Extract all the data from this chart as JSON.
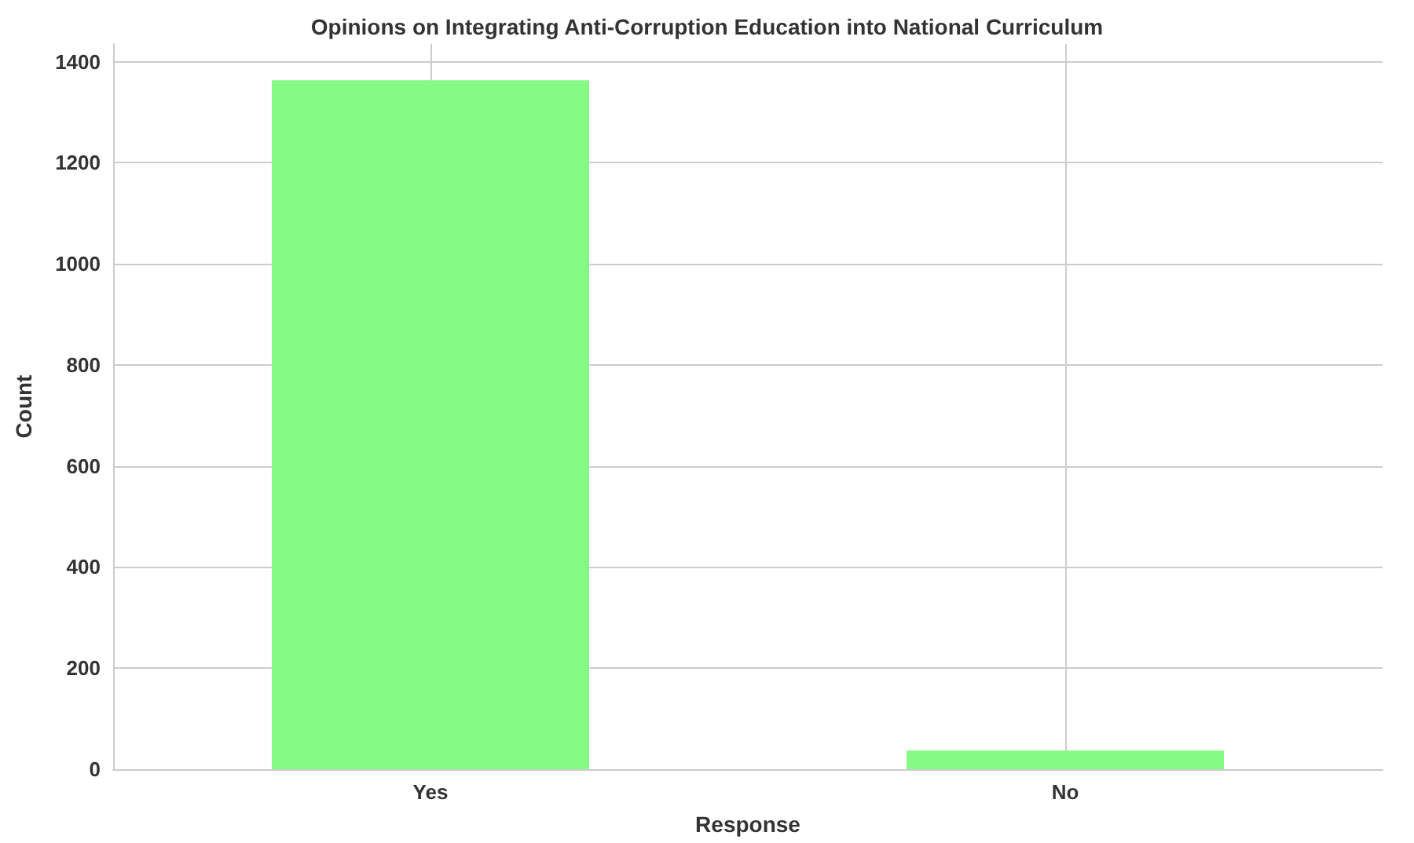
{
  "chart_data": {
    "type": "bar",
    "title": "Opinions on Integrating Anti-Corruption Education into National Curriculum",
    "xlabel": "Response",
    "ylabel": "Count",
    "categories": [
      "Yes",
      "No"
    ],
    "series": [
      {
        "color": "#85fa85",
        "values": [
          1363,
          37
        ]
      }
    ],
    "ylim": [
      0,
      1435
    ],
    "yticks": [
      0,
      200,
      400,
      600,
      800,
      1000,
      1200,
      1400
    ],
    "grid": true
  }
}
